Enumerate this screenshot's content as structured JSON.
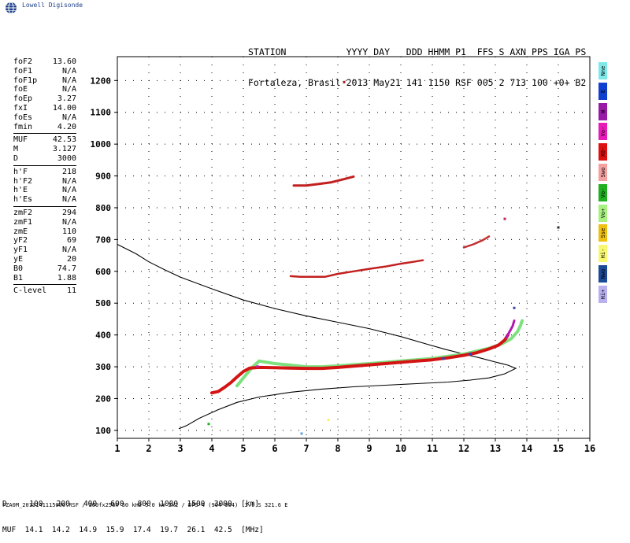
{
  "logo": {
    "text": "Lowell Digisonde",
    "icon": "globe-icon"
  },
  "header": {
    "line1": "STATION           YYYY DAY   DDD HHMM P1  FFS S AXN PPS IGA PS",
    "line2": "Fortaleza, Brasil 2013 May21 141 1150 RSF 005 2 713 100 +0+ B2"
  },
  "params": {
    "group1": [
      {
        "label": "foF2",
        "value": "13.60"
      },
      {
        "label": "foF1",
        "value": "N/A"
      },
      {
        "label": "foF1p",
        "value": "N/A"
      },
      {
        "label": "foE",
        "value": "N/A"
      },
      {
        "label": "foEp",
        "value": "3.27"
      },
      {
        "label": "fxI",
        "value": "14.00"
      },
      {
        "label": "foEs",
        "value": "N/A"
      },
      {
        "label": "fmin",
        "value": "4.20"
      }
    ],
    "group2": [
      {
        "label": "MUF",
        "value": "42.53"
      },
      {
        "label": "M",
        "value": "3.127"
      },
      {
        "label": "D",
        "value": "3000"
      }
    ],
    "group3": [
      {
        "label": "h'F",
        "value": "218"
      },
      {
        "label": "h'F2",
        "value": "N/A"
      },
      {
        "label": "h'E",
        "value": "N/A"
      },
      {
        "label": "h'Es",
        "value": "N/A"
      }
    ],
    "group4": [
      {
        "label": "zmF2",
        "value": "294"
      },
      {
        "label": "zmF1",
        "value": "N/A"
      },
      {
        "label": "zmE",
        "value": "110"
      },
      {
        "label": "yF2",
        "value": "69"
      },
      {
        "label": "yF1",
        "value": "N/A"
      },
      {
        "label": "yE",
        "value": "20"
      },
      {
        "label": "B0",
        "value": "74.7"
      },
      {
        "label": "B1",
        "value": "1.88"
      }
    ],
    "group5": [
      {
        "label": "C-level",
        "value": "11"
      }
    ]
  },
  "legend": [
    {
      "label": "Nne",
      "color": "#7fe8e8"
    },
    {
      "label": "E",
      "color": "#1040d0"
    },
    {
      "label": "W",
      "color": "#9a1aa8"
    },
    {
      "label": "Vo-",
      "color": "#e81ab8"
    },
    {
      "label": "X0-",
      "color": "#e01010"
    },
    {
      "label": "Swo",
      "color": "#f4a0a0"
    },
    {
      "label": "Vo-",
      "color": "#20b020"
    },
    {
      "label": "Vo+",
      "color": "#a8f080"
    },
    {
      "label": "Sse",
      "color": "#f0c010"
    },
    {
      "label": "Hi-",
      "color": "#f8f870"
    },
    {
      "label": "Nwo",
      "color": "#1a4a98"
    },
    {
      "label": "Hi+",
      "color": "#b8b0f0"
    }
  ],
  "muf_table": {
    "d_line": "D     100   200   400   600   800  1000  1500  3000  [km]",
    "muf_line": "MUF  14.1  14.2  14.9  15.9  17.4  19.7  26.1  42.5  [MHz]"
  },
  "footer": "FZA0M_2013141115000.RSF / 300fx256h 50 kHz 5.0 km 2x2 / DPS-4 (904-904)  3.9 S 321.6 E",
  "chart_data": {
    "type": "scatter",
    "xlabel": "",
    "ylabel": "",
    "xlim": [
      1,
      16
    ],
    "ylim": [
      75,
      1275
    ],
    "x_ticks": [
      1,
      2,
      3,
      4,
      5,
      6,
      7,
      8,
      9,
      10,
      11,
      12,
      13,
      14,
      15,
      16
    ],
    "y_ticks": [
      100,
      200,
      300,
      400,
      500,
      600,
      700,
      800,
      900,
      1000,
      1100,
      1200
    ],
    "grid": "dotted",
    "profile": [
      [
        2.95,
        105
      ],
      [
        3.2,
        115
      ],
      [
        3.6,
        138
      ],
      [
        4.2,
        165
      ],
      [
        4.8,
        188
      ],
      [
        5.5,
        205
      ],
      [
        6.5,
        220
      ],
      [
        7.5,
        230
      ],
      [
        8.5,
        237
      ],
      [
        9.5,
        242
      ],
      [
        10.5,
        247
      ],
      [
        11.5,
        252
      ],
      [
        12.2,
        258
      ],
      [
        12.8,
        265
      ],
      [
        13.3,
        278
      ],
      [
        13.65,
        295
      ],
      [
        13.4,
        305
      ],
      [
        13.0,
        315
      ],
      [
        12.5,
        328
      ],
      [
        12.0,
        340
      ],
      [
        11.4,
        355
      ],
      [
        10.8,
        372
      ],
      [
        10.0,
        395
      ],
      [
        9.0,
        420
      ],
      [
        8.0,
        440
      ],
      [
        7.0,
        460
      ],
      [
        6.0,
        483
      ],
      [
        5.0,
        510
      ],
      [
        4.0,
        545
      ],
      [
        3.0,
        582
      ],
      [
        2.5,
        605
      ],
      [
        2.0,
        630
      ],
      [
        1.6,
        655
      ],
      [
        1.0,
        685
      ]
    ],
    "o_trace_red": [
      [
        4.0,
        218
      ],
      [
        4.2,
        222
      ],
      [
        4.4,
        235
      ],
      [
        4.6,
        250
      ],
      [
        4.8,
        268
      ],
      [
        5.0,
        285
      ],
      [
        5.2,
        296
      ],
      [
        5.5,
        298
      ],
      [
        6.0,
        297
      ],
      [
        6.5,
        296
      ],
      [
        7.0,
        295
      ],
      [
        7.5,
        295
      ],
      [
        8.0,
        298
      ],
      [
        8.5,
        302
      ],
      [
        9.0,
        306
      ],
      [
        9.5,
        310
      ],
      [
        10.0,
        314
      ],
      [
        10.5,
        318
      ],
      [
        11.0,
        322
      ],
      [
        11.5,
        328
      ],
      [
        12.0,
        336
      ],
      [
        12.4,
        344
      ],
      [
        12.8,
        356
      ],
      [
        13.1,
        368
      ],
      [
        13.3,
        384
      ],
      [
        13.4,
        400
      ]
    ],
    "o_trace_magenta": [
      [
        13.35,
        392
      ],
      [
        13.45,
        410
      ],
      [
        13.55,
        428
      ],
      [
        13.6,
        445
      ]
    ],
    "x_trace_green": [
      [
        4.8,
        240
      ],
      [
        5.0,
        265
      ],
      [
        5.3,
        300
      ],
      [
        5.5,
        318
      ],
      [
        6.0,
        310
      ],
      [
        6.5,
        305
      ],
      [
        7.0,
        300
      ],
      [
        7.5,
        300
      ],
      [
        8.0,
        303
      ],
      [
        9.0,
        310
      ],
      [
        10.0,
        318
      ],
      [
        11.0,
        326
      ],
      [
        12.0,
        340
      ],
      [
        12.8,
        358
      ],
      [
        13.2,
        372
      ],
      [
        13.5,
        388
      ],
      [
        13.7,
        410
      ],
      [
        13.8,
        430
      ],
      [
        13.85,
        445
      ]
    ],
    "echoes_600": [
      [
        6.5,
        585
      ],
      [
        6.8,
        583
      ],
      [
        7.2,
        583
      ],
      [
        7.6,
        583
      ],
      [
        8.0,
        592
      ],
      [
        8.5,
        600
      ],
      [
        9.0,
        608
      ],
      [
        9.5,
        615
      ],
      [
        10.0,
        624
      ],
      [
        10.4,
        630
      ],
      [
        10.7,
        635
      ]
    ],
    "echoes_700": [
      [
        12.0,
        675
      ],
      [
        12.3,
        685
      ],
      [
        12.6,
        698
      ],
      [
        12.8,
        710
      ]
    ],
    "echoes_870": [
      [
        6.6,
        870
      ],
      [
        7.0,
        870
      ],
      [
        7.4,
        875
      ],
      [
        7.8,
        880
      ],
      [
        8.2,
        890
      ],
      [
        8.5,
        898
      ]
    ],
    "isolated": [
      {
        "x": 8.2,
        "y": 1195,
        "color": "#a02020"
      },
      {
        "x": 13.3,
        "y": 765,
        "color": "#c02060"
      },
      {
        "x": 15.0,
        "y": 738,
        "color": "#303030"
      },
      {
        "x": 13.6,
        "y": 485,
        "color": "#4040a0"
      },
      {
        "x": 3.9,
        "y": 120,
        "color": "#20b020"
      },
      {
        "x": 7.7,
        "y": 133,
        "color": "#f8f070"
      },
      {
        "x": 6.85,
        "y": 90,
        "color": "#60a0e0"
      },
      {
        "x": 5.45,
        "y": 301,
        "color": "#c020c0"
      },
      {
        "x": 11.35,
        "y": 326,
        "color": "#2040d0"
      },
      {
        "x": 12.2,
        "y": 340,
        "color": "#2040d0"
      }
    ]
  }
}
